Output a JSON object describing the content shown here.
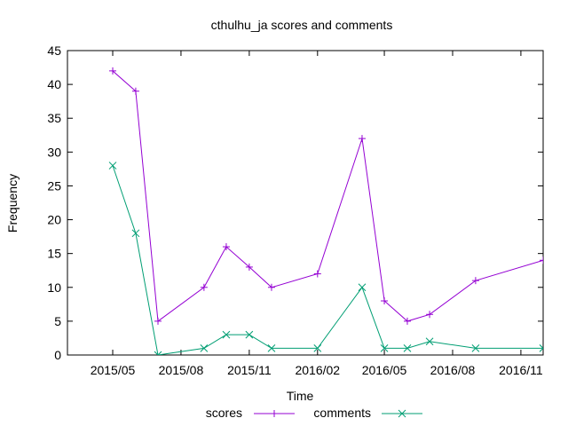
{
  "chart_data": {
    "type": "line",
    "title": "cthulhu_ja scores and comments",
    "xlabel": "Time",
    "ylabel": "Frequency",
    "x_ticks": [
      "2015/05",
      "2015/08",
      "2015/11",
      "2016/02",
      "2016/05",
      "2016/08",
      "2016/11"
    ],
    "y_ticks": [
      "0",
      "5",
      "10",
      "15",
      "20",
      "25",
      "30",
      "35",
      "40",
      "45"
    ],
    "ylim": [
      0,
      45
    ],
    "xlim": [
      "2015-03-01",
      "2016-12-01"
    ],
    "x_tick_dates": [
      "2015-05-01",
      "2015-08-01",
      "2015-11-01",
      "2016-02-01",
      "2016-05-01",
      "2016-08-01",
      "2016-11-01"
    ],
    "legend_position": "bottom-center",
    "grid": false,
    "series": [
      {
        "name": "scores",
        "color": "#9400d3",
        "marker": "plus",
        "x": [
          "2015-05-01",
          "2015-06-01",
          "2015-07-01",
          "2015-09-01",
          "2015-10-01",
          "2015-11-01",
          "2015-12-01",
          "2016-02-01",
          "2016-04-01",
          "2016-05-01",
          "2016-06-01",
          "2016-07-01",
          "2016-09-01",
          "2016-12-01"
        ],
        "values": [
          42,
          39,
          5,
          10,
          16,
          13,
          10,
          12,
          32,
          8,
          5,
          6,
          11,
          14
        ]
      },
      {
        "name": "comments",
        "color": "#009e73",
        "marker": "x",
        "x": [
          "2015-05-01",
          "2015-06-01",
          "2015-07-01",
          "2015-09-01",
          "2015-10-01",
          "2015-11-01",
          "2015-12-01",
          "2016-02-01",
          "2016-04-01",
          "2016-05-01",
          "2016-06-01",
          "2016-07-01",
          "2016-09-01",
          "2016-12-01"
        ],
        "values": [
          28,
          18,
          0,
          1,
          3,
          3,
          1,
          1,
          10,
          1,
          1,
          2,
          1,
          1
        ]
      }
    ]
  }
}
